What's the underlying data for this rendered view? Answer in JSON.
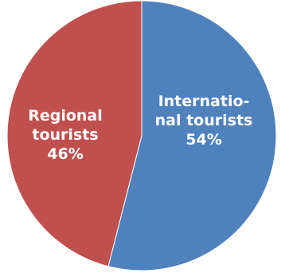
{
  "chart_data": {
    "type": "pie",
    "slices": [
      {
        "label_lines": [
          "Internatio-",
          "nal tourists"
        ],
        "value_label": "54%",
        "value": 54,
        "color": "#4F81BD"
      },
      {
        "label_lines": [
          "Regional",
          "tourists"
        ],
        "value_label": "46%",
        "value": 46,
        "color": "#C0504D"
      }
    ]
  }
}
